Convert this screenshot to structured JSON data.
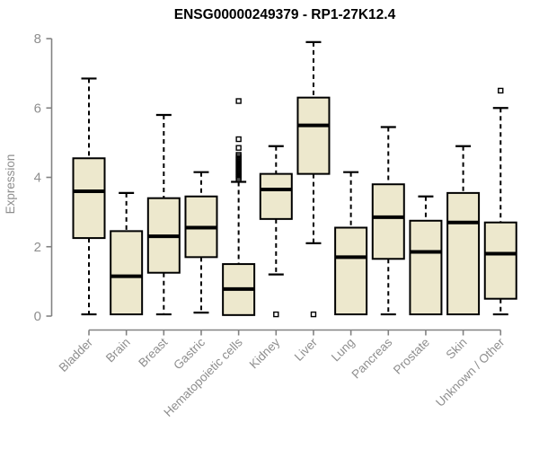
{
  "chart_data": {
    "type": "boxplot",
    "title": "ENSG00000249379 - RP1-27K12.4",
    "ylabel": "Expression",
    "xlabel": "",
    "ylim": [
      0,
      8
    ],
    "yticks": [
      0,
      2,
      4,
      6,
      8
    ],
    "grid": false,
    "legend": "none",
    "categories": [
      "Bladder",
      "Brain",
      "Breast",
      "Gastric",
      "Hematopoietic cells",
      "Kidney",
      "Liver",
      "Lung",
      "Pancreas",
      "Prostate",
      "Skin",
      "Unknown / Other"
    ],
    "series": [
      {
        "name": "Bladder",
        "min": 0.05,
        "q1": 2.25,
        "median": 3.6,
        "q3": 4.55,
        "max": 6.85,
        "outliers": []
      },
      {
        "name": "Brain",
        "min": 0.05,
        "q1": 0.05,
        "median": 1.15,
        "q3": 2.45,
        "max": 3.55,
        "outliers": []
      },
      {
        "name": "Breast",
        "min": 0.05,
        "q1": 1.25,
        "median": 2.3,
        "q3": 3.4,
        "max": 5.8,
        "outliers": []
      },
      {
        "name": "Gastric",
        "min": 0.1,
        "q1": 1.7,
        "median": 2.55,
        "q3": 3.45,
        "max": 4.15,
        "outliers": []
      },
      {
        "name": "Hematopoietic cells",
        "min": 0.03,
        "q1": 0.03,
        "median": 0.78,
        "q3": 1.5,
        "max": 3.87,
        "outliers": [
          3.95,
          4.0,
          4.05,
          4.1,
          4.15,
          4.2,
          4.25,
          4.3,
          4.35,
          4.4,
          4.45,
          4.5,
          4.55,
          4.6,
          4.65,
          4.85,
          5.1,
          6.2
        ]
      },
      {
        "name": "Kidney",
        "min": 1.2,
        "q1": 2.8,
        "median": 3.65,
        "q3": 4.1,
        "max": 4.9,
        "outliers": [
          0.05
        ]
      },
      {
        "name": "Liver",
        "min": 2.1,
        "q1": 4.1,
        "median": 5.5,
        "q3": 6.3,
        "max": 7.9,
        "outliers": [
          0.05
        ]
      },
      {
        "name": "Lung",
        "min": 0.05,
        "q1": 0.05,
        "median": 1.7,
        "q3": 2.55,
        "max": 4.15,
        "outliers": []
      },
      {
        "name": "Pancreas",
        "min": 0.05,
        "q1": 1.65,
        "median": 2.85,
        "q3": 3.8,
        "max": 5.45,
        "outliers": []
      },
      {
        "name": "Prostate",
        "min": 0.05,
        "q1": 0.05,
        "median": 1.85,
        "q3": 2.75,
        "max": 3.45,
        "outliers": []
      },
      {
        "name": "Skin",
        "min": 0.05,
        "q1": 0.05,
        "median": 2.7,
        "q3": 3.55,
        "max": 4.9,
        "outliers": []
      },
      {
        "name": "Unknown / Other",
        "min": 0.05,
        "q1": 0.5,
        "median": 1.8,
        "q3": 2.7,
        "max": 6.0,
        "outliers": [
          6.5
        ]
      }
    ]
  },
  "colors": {
    "box_fill": "#EDE8CD",
    "box_stroke": "#000000",
    "median": "#000000",
    "whisker": "#000000",
    "axis": "#828282",
    "tick_label": "#8e8e8e",
    "title": "#000000",
    "background": "#ffffff"
  }
}
